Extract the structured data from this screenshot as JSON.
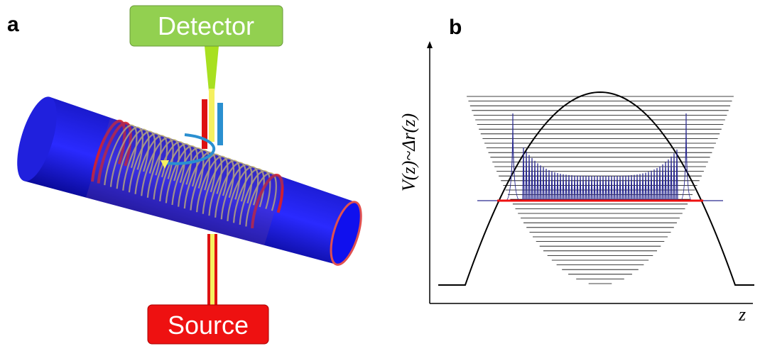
{
  "panels": [
    {
      "label": "a",
      "detector": "Detector",
      "source": "Source"
    },
    {
      "label": "b",
      "y_axis_label": "V(z)~Δr(z)",
      "x_axis_label": "z"
    }
  ]
}
